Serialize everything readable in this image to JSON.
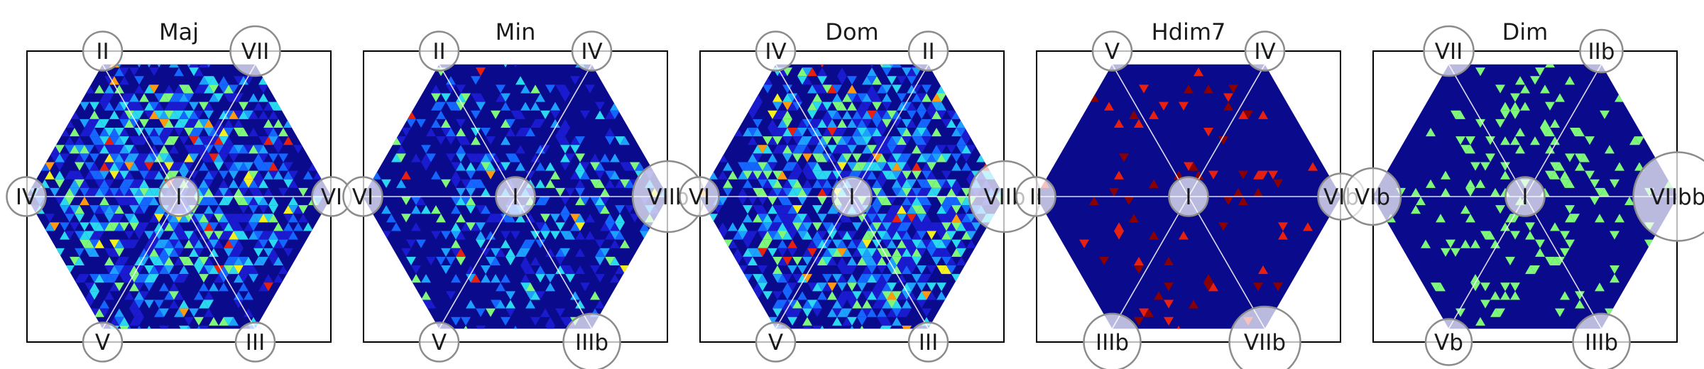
{
  "chart_data": [
    {
      "type": "heatmap",
      "title": "Maj",
      "nodes": {
        "center": {
          "label": "I",
          "weight": 0.55
        },
        "top_left": {
          "label": "II",
          "weight": 0.55
        },
        "top_right": {
          "label": "VII",
          "weight": 0.7
        },
        "left": {
          "label": "IV",
          "weight": 0.55
        },
        "right": {
          "label": "VI",
          "weight": 0.55
        },
        "bottom_left": {
          "label": "V",
          "weight": 0.55
        },
        "bottom_right": {
          "label": "III",
          "weight": 0.55
        }
      },
      "density": {
        "level": 0.7,
        "hot": 0.05,
        "spread": 0.55
      }
    },
    {
      "type": "heatmap",
      "title": "Min",
      "nodes": {
        "center": {
          "label": "I",
          "weight": 0.55
        },
        "top_left": {
          "label": "II",
          "weight": 0.55
        },
        "top_right": {
          "label": "IV",
          "weight": 0.55
        },
        "left": {
          "label": "VI",
          "weight": 0.55
        },
        "right": {
          "label": "VIIb",
          "weight": 1.0
        },
        "bottom_left": {
          "label": "V",
          "weight": 0.55
        },
        "bottom_right": {
          "label": "IIIb",
          "weight": 0.8
        }
      },
      "density": {
        "level": 0.35,
        "hot": 0.03,
        "spread": 0.6
      }
    },
    {
      "type": "heatmap",
      "title": "Dom",
      "nodes": {
        "center": {
          "label": "I",
          "weight": 0.55
        },
        "top_left": {
          "label": "IV",
          "weight": 0.55
        },
        "top_right": {
          "label": "II",
          "weight": 0.55
        },
        "left": {
          "label": "VI",
          "weight": 0.55
        },
        "right": {
          "label": "VIIb",
          "weight": 1.0
        },
        "bottom_left": {
          "label": "V",
          "weight": 0.55
        },
        "bottom_right": {
          "label": "III",
          "weight": 0.55
        }
      },
      "density": {
        "level": 0.75,
        "hot": 0.05,
        "spread": 0.6
      }
    },
    {
      "type": "heatmap",
      "title": "Hdim7",
      "nodes": {
        "center": {
          "label": "I",
          "weight": 0.55
        },
        "top_left": {
          "label": "V",
          "weight": 0.55
        },
        "top_right": {
          "label": "IV",
          "weight": 0.55
        },
        "left": {
          "label": "II",
          "weight": 0.55
        },
        "right": {
          "label": "VIb",
          "weight": 0.65
        },
        "bottom_left": {
          "label": "IIIb",
          "weight": 0.8
        },
        "bottom_right": {
          "label": "VIIb",
          "weight": 1.0
        }
      },
      "density": {
        "level": 0.08,
        "hot": 1.0,
        "spread": 0.5
      }
    },
    {
      "type": "heatmap",
      "title": "Dim",
      "nodes": {
        "center": {
          "label": "I",
          "weight": 0.55
        },
        "top_left": {
          "label": "VII",
          "weight": 0.7
        },
        "top_right": {
          "label": "IIb",
          "weight": 0.6
        },
        "left": {
          "label": "VIb",
          "weight": 0.8
        },
        "right": {
          "label": "VIIbb",
          "weight": 1.25
        },
        "bottom_left": {
          "label": "Vb",
          "weight": 0.65
        },
        "bottom_right": {
          "label": "IIIb",
          "weight": 0.8
        }
      },
      "density": {
        "level": 0.16,
        "hot": 0.0,
        "spread": 0.45
      }
    }
  ],
  "colors": {
    "background_cell": "#0a0a8c",
    "frame": "#000000",
    "node_stroke": "#8c8c8c",
    "colormap": [
      "#1a1acf",
      "#1565ff",
      "#1ea0ff",
      "#2ad8f0",
      "#7ef77a",
      "#f4f020",
      "#ff9a10",
      "#e82010",
      "#8a0000"
    ]
  }
}
